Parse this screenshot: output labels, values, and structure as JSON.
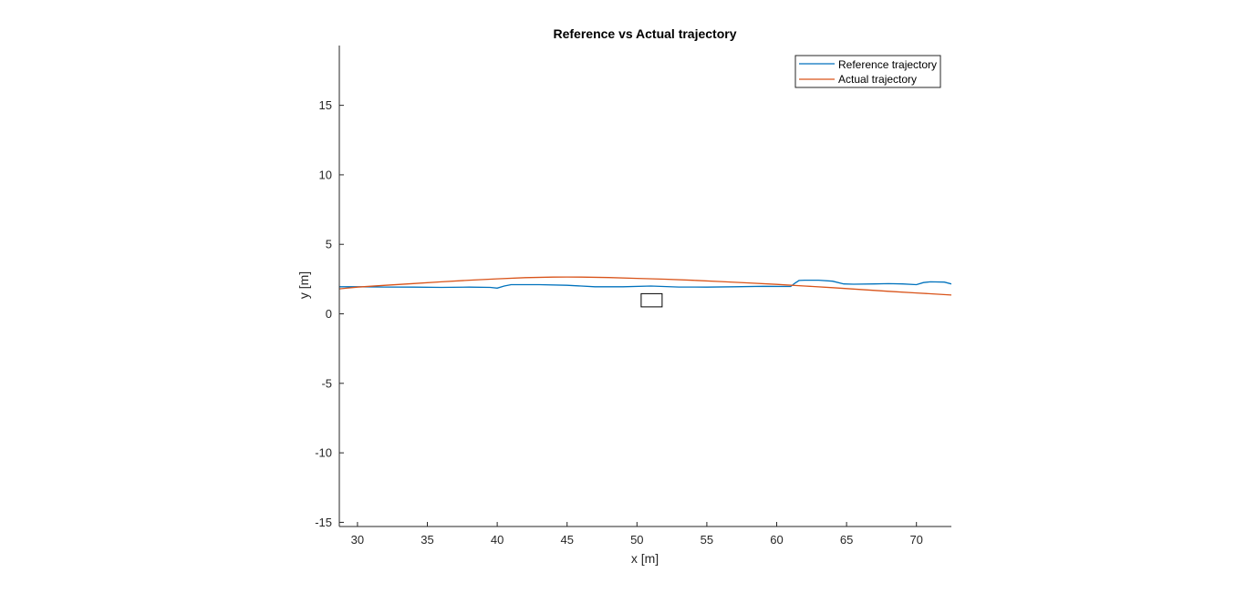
{
  "chart_data": {
    "type": "line",
    "title": "Reference vs Actual trajectory",
    "xlabel": "x [m]",
    "ylabel": "y [m]",
    "xlim": [
      28.7,
      72.5
    ],
    "ylim": [
      -15.3,
      19.3
    ],
    "xticks": [
      30,
      35,
      40,
      45,
      50,
      55,
      60,
      65,
      70
    ],
    "yticks": [
      -15,
      -10,
      -5,
      0,
      5,
      10,
      15
    ],
    "grid": false,
    "legend_position": "top-right",
    "series": [
      {
        "name": "Reference trajectory",
        "color": "#0072BD",
        "x": [
          28.7,
          30,
          32,
          34,
          36,
          38,
          39.5,
          40,
          40.5,
          41,
          43,
          45,
          47,
          49,
          51,
          53,
          55,
          57,
          59,
          61,
          61.3,
          61.6,
          62,
          63,
          64,
          64.8,
          65.5,
          67,
          68,
          69,
          70,
          70.5,
          71,
          72,
          72.5
        ],
        "y": [
          1.95,
          1.95,
          1.93,
          1.92,
          1.9,
          1.92,
          1.9,
          1.85,
          2.0,
          2.1,
          2.1,
          2.05,
          1.95,
          1.95,
          2.0,
          1.93,
          1.92,
          1.95,
          1.98,
          1.97,
          2.2,
          2.4,
          2.42,
          2.42,
          2.35,
          2.15,
          2.13,
          2.15,
          2.17,
          2.15,
          2.1,
          2.25,
          2.3,
          2.28,
          2.15
        ]
      },
      {
        "name": "Actual trajectory",
        "color": "#D95319",
        "x": [
          28.7,
          30,
          32,
          34,
          36,
          38,
          40,
          42,
          44,
          45,
          46,
          48,
          50,
          52,
          54,
          56,
          58,
          60,
          62,
          64,
          66,
          68,
          70,
          72.5
        ],
        "y": [
          1.8,
          1.92,
          2.05,
          2.18,
          2.3,
          2.42,
          2.52,
          2.6,
          2.64,
          2.65,
          2.64,
          2.61,
          2.55,
          2.49,
          2.41,
          2.32,
          2.22,
          2.12,
          2.0,
          1.88,
          1.75,
          1.62,
          1.5,
          1.35
        ]
      }
    ],
    "annotations": [
      {
        "type": "rectangle",
        "x0": 50.3,
        "x1": 51.8,
        "y0": 0.5,
        "y1": 1.45,
        "color": "#000000"
      }
    ]
  }
}
